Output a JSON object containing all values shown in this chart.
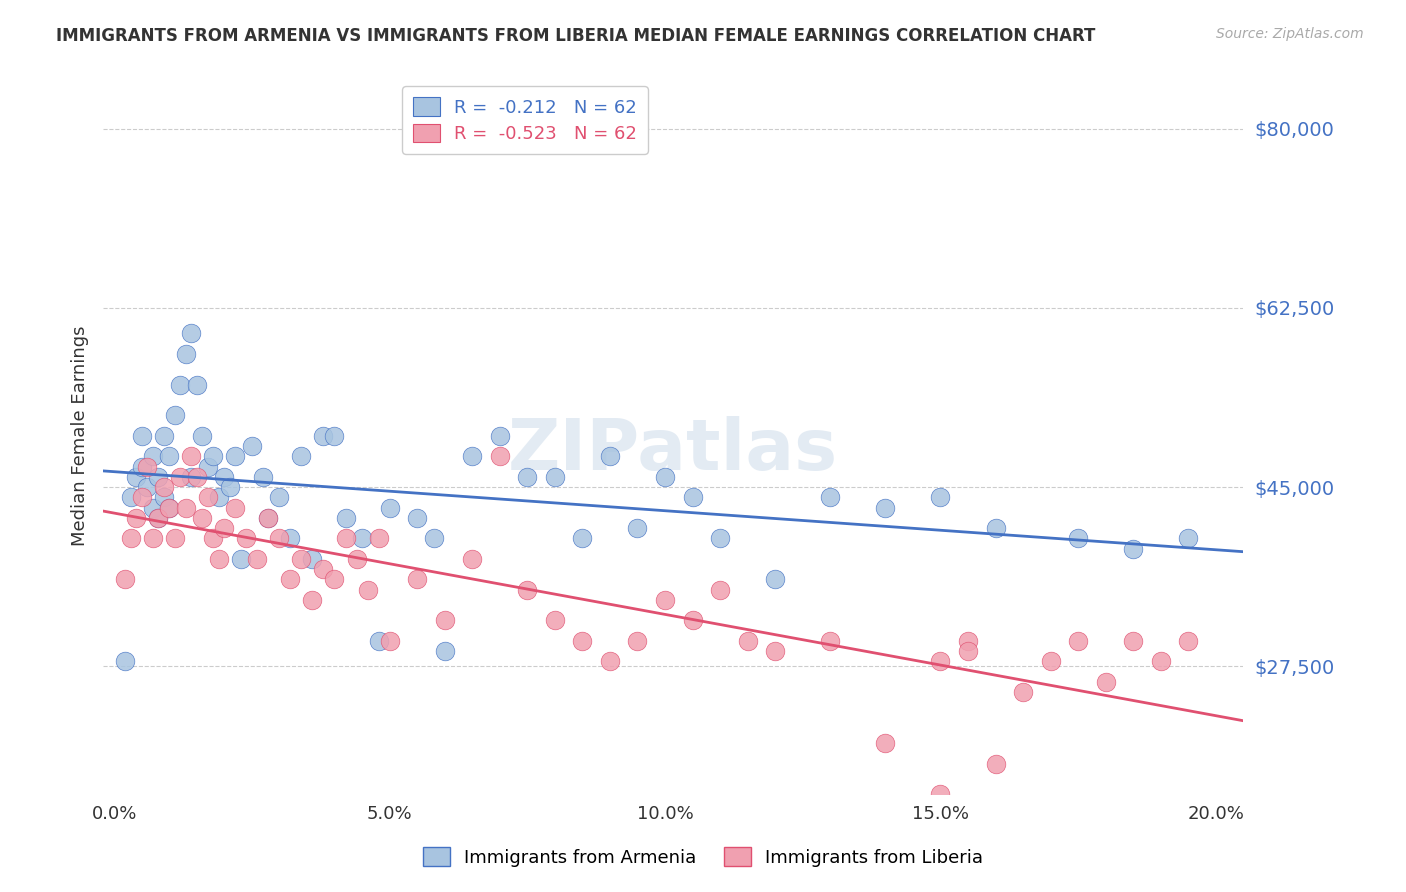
{
  "title": "IMMIGRANTS FROM ARMENIA VS IMMIGRANTS FROM LIBERIA MEDIAN FEMALE EARNINGS CORRELATION CHART",
  "source": "Source: ZipAtlas.com",
  "ylabel": "Median Female Earnings",
  "xlabel_ticks": [
    "0.0%",
    "5.0%",
    "10.0%",
    "15.0%",
    "20.0%"
  ],
  "xlabel_vals": [
    0.0,
    0.05,
    0.1,
    0.15,
    0.2
  ],
  "ytick_labels": [
    "$27,500",
    "$45,000",
    "$62,500",
    "$80,000"
  ],
  "ytick_vals": [
    27500,
    45000,
    62500,
    80000
  ],
  "ylim": [
    15000,
    85000
  ],
  "xlim": [
    -0.002,
    0.205
  ],
  "color_armenia": "#a8c4e0",
  "color_liberia": "#f0a0b0",
  "line_color_armenia": "#4472c4",
  "line_color_liberia": "#e05070",
  "watermark": "ZIPatlas",
  "watermark_color": "#c8d8e8",
  "armenia_x": [
    0.002,
    0.003,
    0.004,
    0.005,
    0.005,
    0.006,
    0.007,
    0.007,
    0.008,
    0.008,
    0.009,
    0.009,
    0.01,
    0.01,
    0.011,
    0.012,
    0.013,
    0.014,
    0.014,
    0.015,
    0.016,
    0.017,
    0.018,
    0.019,
    0.02,
    0.021,
    0.022,
    0.023,
    0.025,
    0.027,
    0.028,
    0.03,
    0.032,
    0.034,
    0.036,
    0.038,
    0.04,
    0.042,
    0.045,
    0.048,
    0.05,
    0.055,
    0.058,
    0.06,
    0.065,
    0.07,
    0.075,
    0.08,
    0.085,
    0.09,
    0.095,
    0.1,
    0.105,
    0.11,
    0.12,
    0.13,
    0.14,
    0.15,
    0.16,
    0.175,
    0.185,
    0.195
  ],
  "armenia_y": [
    28000,
    44000,
    46000,
    47000,
    50000,
    45000,
    48000,
    43000,
    46000,
    42000,
    44000,
    50000,
    48000,
    43000,
    52000,
    55000,
    58000,
    60000,
    46000,
    55000,
    50000,
    47000,
    48000,
    44000,
    46000,
    45000,
    48000,
    38000,
    49000,
    46000,
    42000,
    44000,
    40000,
    48000,
    38000,
    50000,
    50000,
    42000,
    40000,
    30000,
    43000,
    42000,
    40000,
    29000,
    48000,
    50000,
    46000,
    46000,
    40000,
    48000,
    41000,
    46000,
    44000,
    40000,
    36000,
    44000,
    43000,
    44000,
    41000,
    40000,
    39000,
    40000
  ],
  "liberia_x": [
    0.002,
    0.003,
    0.004,
    0.005,
    0.006,
    0.007,
    0.008,
    0.009,
    0.01,
    0.011,
    0.012,
    0.013,
    0.014,
    0.015,
    0.016,
    0.017,
    0.018,
    0.019,
    0.02,
    0.022,
    0.024,
    0.026,
    0.028,
    0.03,
    0.032,
    0.034,
    0.036,
    0.038,
    0.04,
    0.042,
    0.044,
    0.046,
    0.048,
    0.05,
    0.055,
    0.06,
    0.065,
    0.07,
    0.075,
    0.08,
    0.085,
    0.09,
    0.095,
    0.1,
    0.105,
    0.11,
    0.115,
    0.12,
    0.13,
    0.14,
    0.15,
    0.155,
    0.16,
    0.165,
    0.17,
    0.175,
    0.18,
    0.185,
    0.19,
    0.195,
    0.15,
    0.155
  ],
  "liberia_y": [
    36000,
    40000,
    42000,
    44000,
    47000,
    40000,
    42000,
    45000,
    43000,
    40000,
    46000,
    43000,
    48000,
    46000,
    42000,
    44000,
    40000,
    38000,
    41000,
    43000,
    40000,
    38000,
    42000,
    40000,
    36000,
    38000,
    34000,
    37000,
    36000,
    40000,
    38000,
    35000,
    40000,
    30000,
    36000,
    32000,
    38000,
    48000,
    35000,
    32000,
    30000,
    28000,
    30000,
    34000,
    32000,
    35000,
    30000,
    29000,
    30000,
    20000,
    28000,
    30000,
    18000,
    25000,
    28000,
    30000,
    26000,
    30000,
    28000,
    30000,
    15000,
    29000
  ]
}
